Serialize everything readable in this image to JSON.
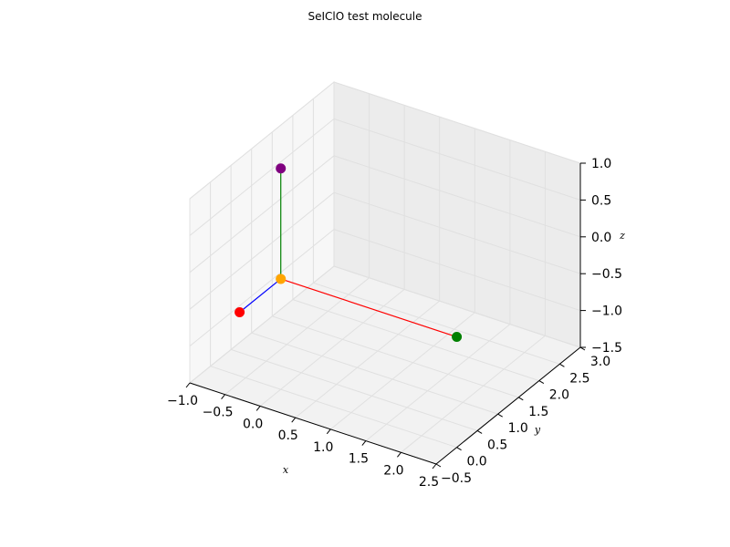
{
  "chart_data": {
    "type": "scatter3d",
    "title": "SeIClO test molecule",
    "xlabel": "x",
    "ylabel": "y",
    "zlabel": "z",
    "xlim": [
      -1.0,
      2.5
    ],
    "ylim": [
      -0.5,
      3.0
    ],
    "zlim": [
      -1.5,
      1.0
    ],
    "xticks": [
      "−1.0",
      "−0.5",
      "0.0",
      "0.5",
      "1.0",
      "1.5",
      "2.0",
      "2.5"
    ],
    "yticks": [
      "−0.5",
      "0.0",
      "0.5",
      "1.0",
      "1.5",
      "2.0",
      "2.5",
      "3.0"
    ],
    "zticks": [
      "−1.5",
      "−1.0",
      "−0.5",
      "0.0",
      "0.5",
      "1.0"
    ],
    "grid": true,
    "atoms": [
      {
        "x": 0.0,
        "y": 0.0,
        "z": 0.0,
        "color": "#ffa500"
      },
      {
        "x": 0.0,
        "y": 0.0,
        "z": 1.5,
        "color": "#800080"
      },
      {
        "x": 2.5,
        "y": 0.0,
        "z": 0.0,
        "color": "#008000"
      },
      {
        "x": 0.0,
        "y": -1.0,
        "z": 0.0,
        "color": "#ff0000"
      }
    ],
    "bonds": [
      {
        "from": 0,
        "to": 1,
        "color": "#008000"
      },
      {
        "from": 0,
        "to": 2,
        "color": "#ff0000"
      },
      {
        "from": 0,
        "to": 3,
        "color": "#0000ff"
      }
    ]
  }
}
